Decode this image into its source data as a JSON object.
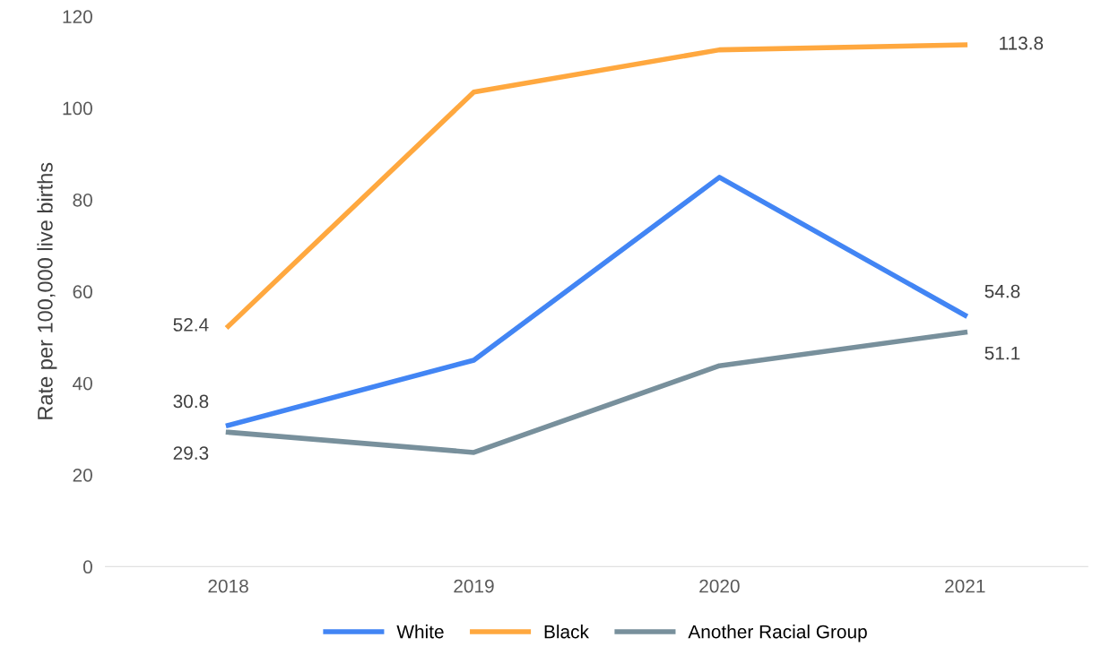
{
  "chart_data": {
    "type": "line",
    "ylabel": "Rate per 100,000 live births",
    "categories": [
      "2018",
      "2019",
      "2020",
      "2021"
    ],
    "series": [
      {
        "name": "White",
        "color": "#4285f4",
        "values": [
          30.8,
          45.0,
          84.9,
          54.8
        ],
        "value_labels": [
          "30.8",
          null,
          null,
          "54.8"
        ]
      },
      {
        "name": "Black",
        "color": "#ffa83f",
        "values": [
          52.4,
          103.5,
          112.7,
          113.8
        ],
        "value_labels": [
          "52.4",
          null,
          null,
          "113.8"
        ]
      },
      {
        "name": "Another Racial Group",
        "color": "#78909c",
        "values": [
          29.3,
          24.9,
          43.8,
          51.1
        ],
        "value_labels": [
          "29.3",
          null,
          null,
          "51.1"
        ]
      }
    ],
    "ylim": [
      0,
      120
    ],
    "yticks": [
      0,
      20,
      40,
      60,
      80,
      100,
      120
    ],
    "legend": "bottom",
    "marker": "none",
    "line_style": "solid"
  }
}
